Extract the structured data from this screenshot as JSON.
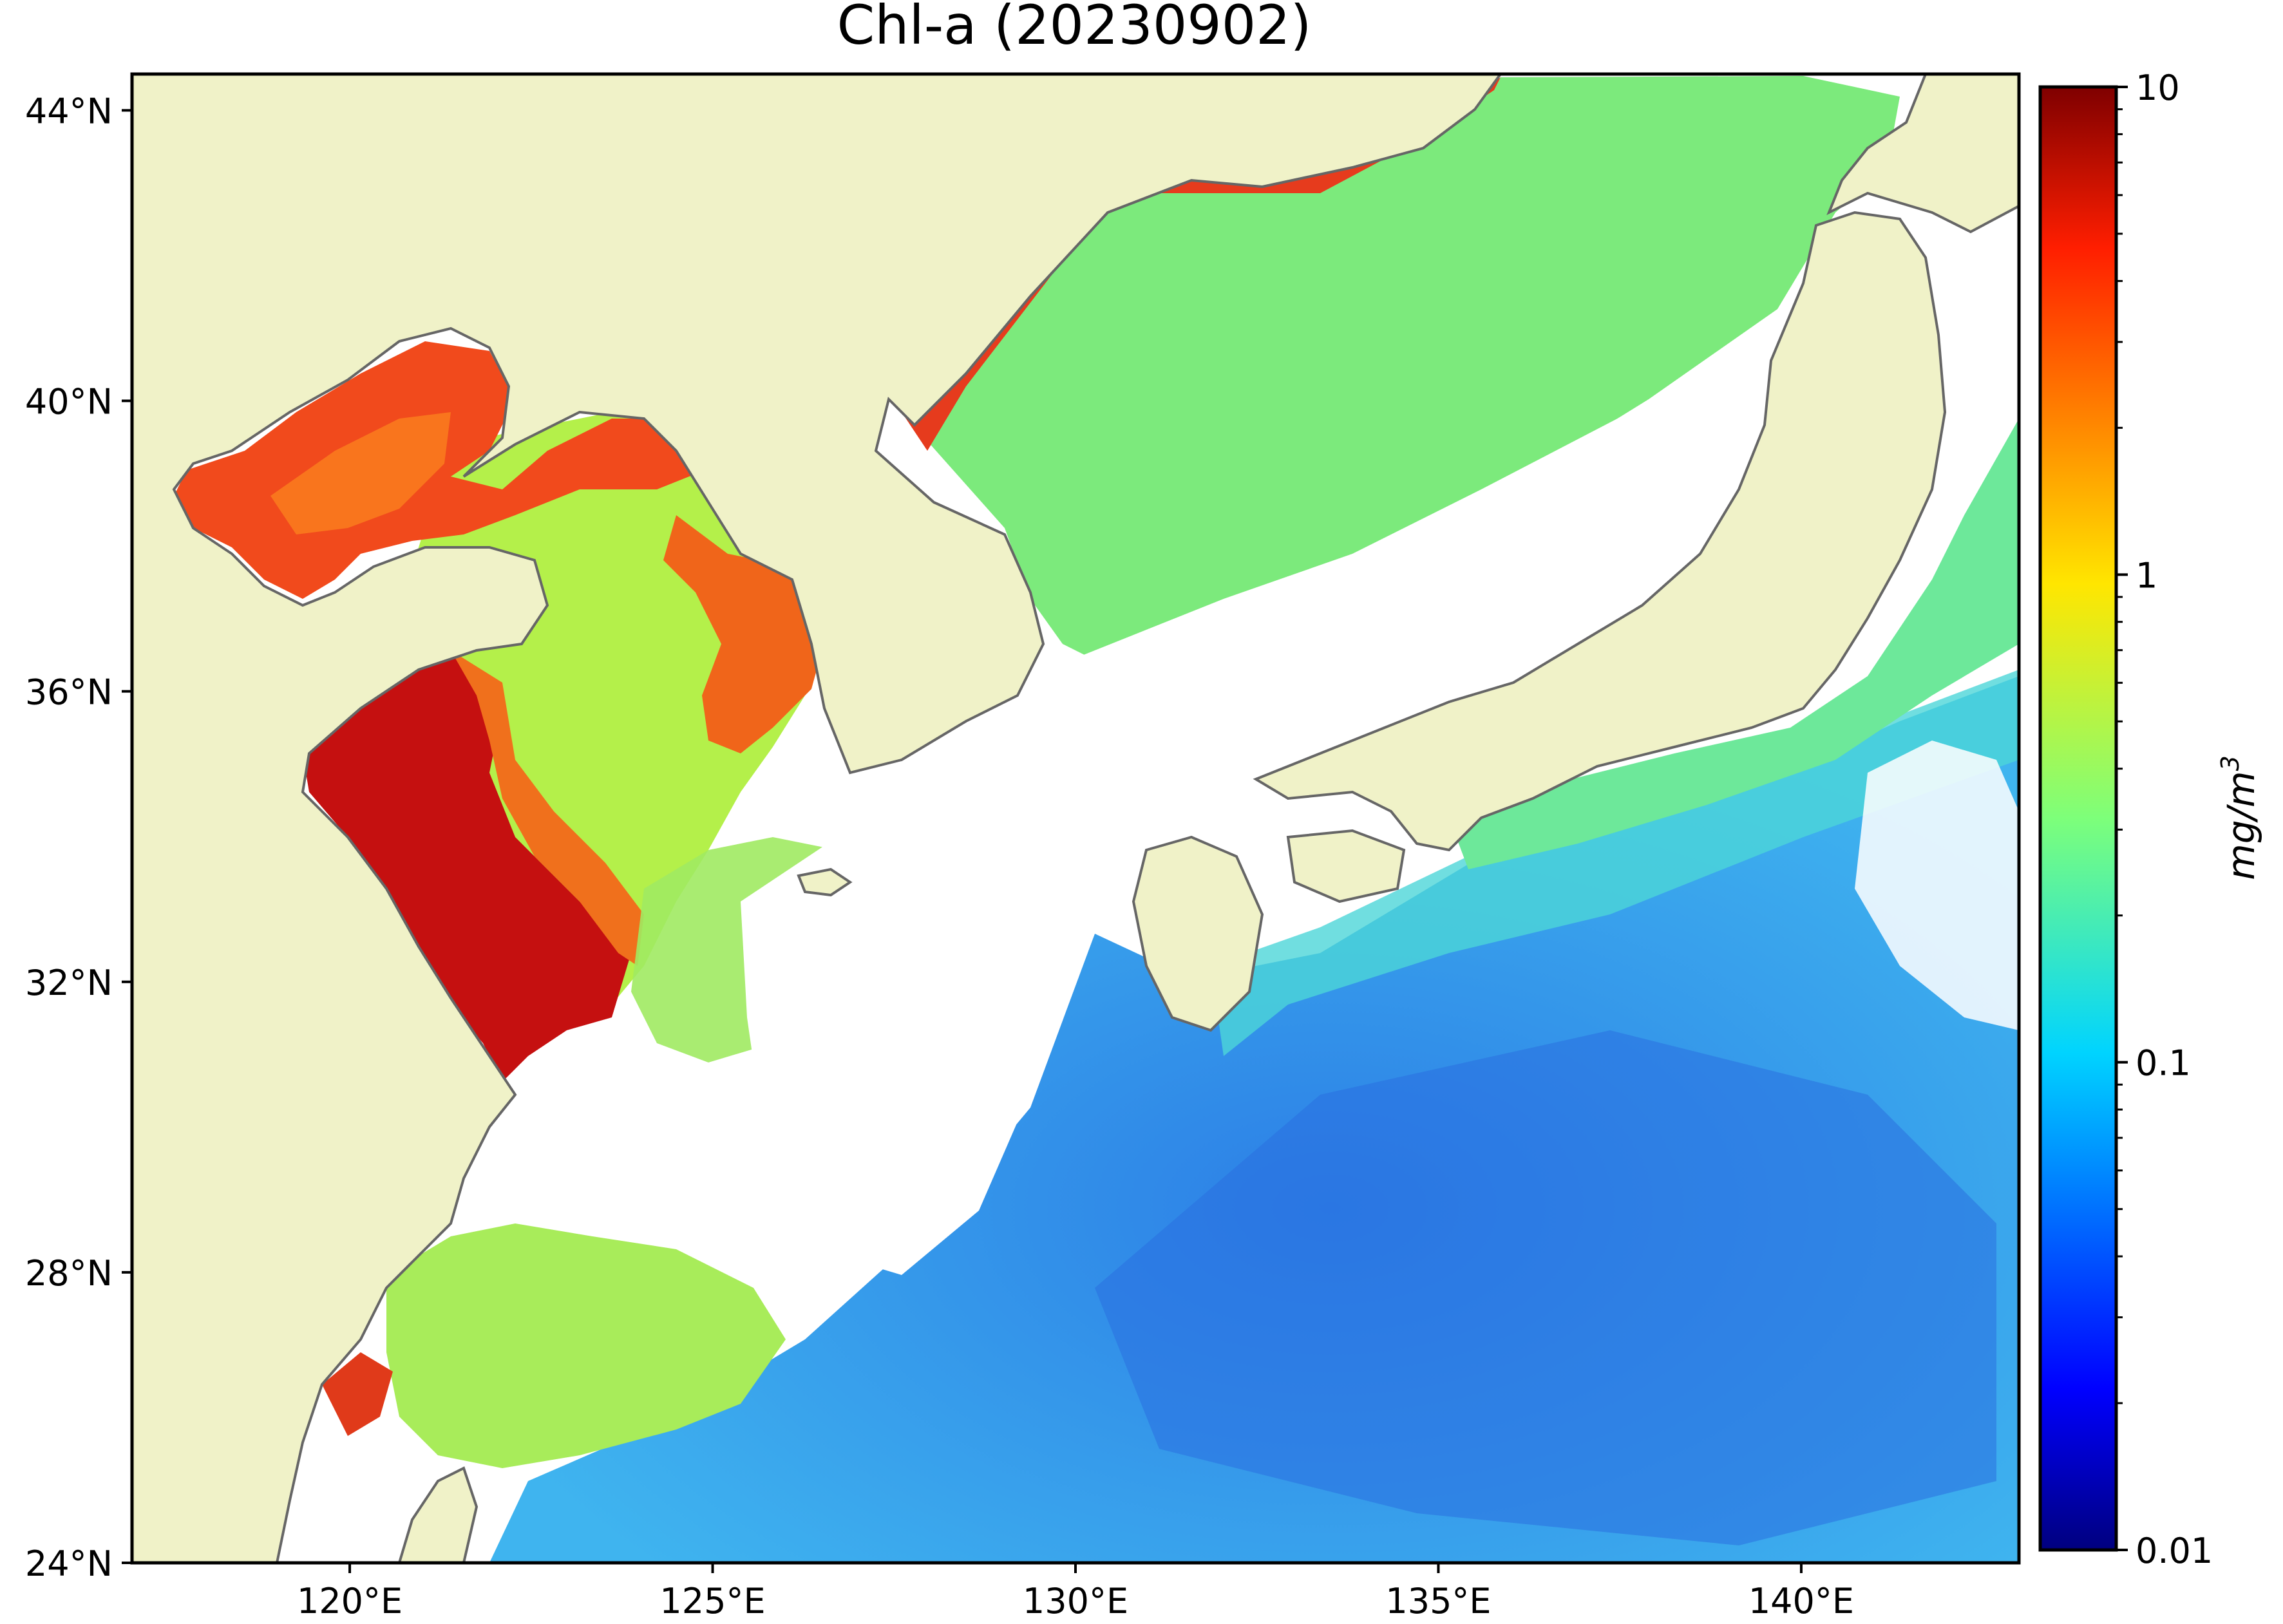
{
  "title": "Chl-a (20230902)",
  "map": {
    "lon_range": [
      117,
      143
    ],
    "lat_range": [
      24,
      44.5
    ],
    "lon_ticks": [
      {
        "value": 120,
        "label": "120°E"
      },
      {
        "value": 125,
        "label": "125°E"
      },
      {
        "value": 130,
        "label": "130°E"
      },
      {
        "value": 135,
        "label": "135°E"
      },
      {
        "value": 140,
        "label": "140°E"
      }
    ],
    "lat_ticks": [
      {
        "value": 24,
        "label": "24°N"
      },
      {
        "value": 28,
        "label": "28°N"
      },
      {
        "value": 32,
        "label": "32°N"
      },
      {
        "value": 36,
        "label": "36°N"
      },
      {
        "value": 40,
        "label": "40°N"
      },
      {
        "value": 44,
        "label": "44°N"
      }
    ],
    "colors": {
      "land": "#f0f2c8",
      "coastline": "#666666",
      "no_data": "#ffffff"
    }
  },
  "colorbar": {
    "scale": "log",
    "range": [
      0.01,
      10
    ],
    "colormap": "jet",
    "unit_label": "mg/m³",
    "unit_base": "mg/m",
    "unit_exp": "3",
    "ticks": [
      {
        "value": 10,
        "label": "10"
      },
      {
        "value": 1,
        "label": "1"
      },
      {
        "value": 0.1,
        "label": "0.1"
      },
      {
        "value": 0.01,
        "label": "0.01"
      }
    ]
  }
}
